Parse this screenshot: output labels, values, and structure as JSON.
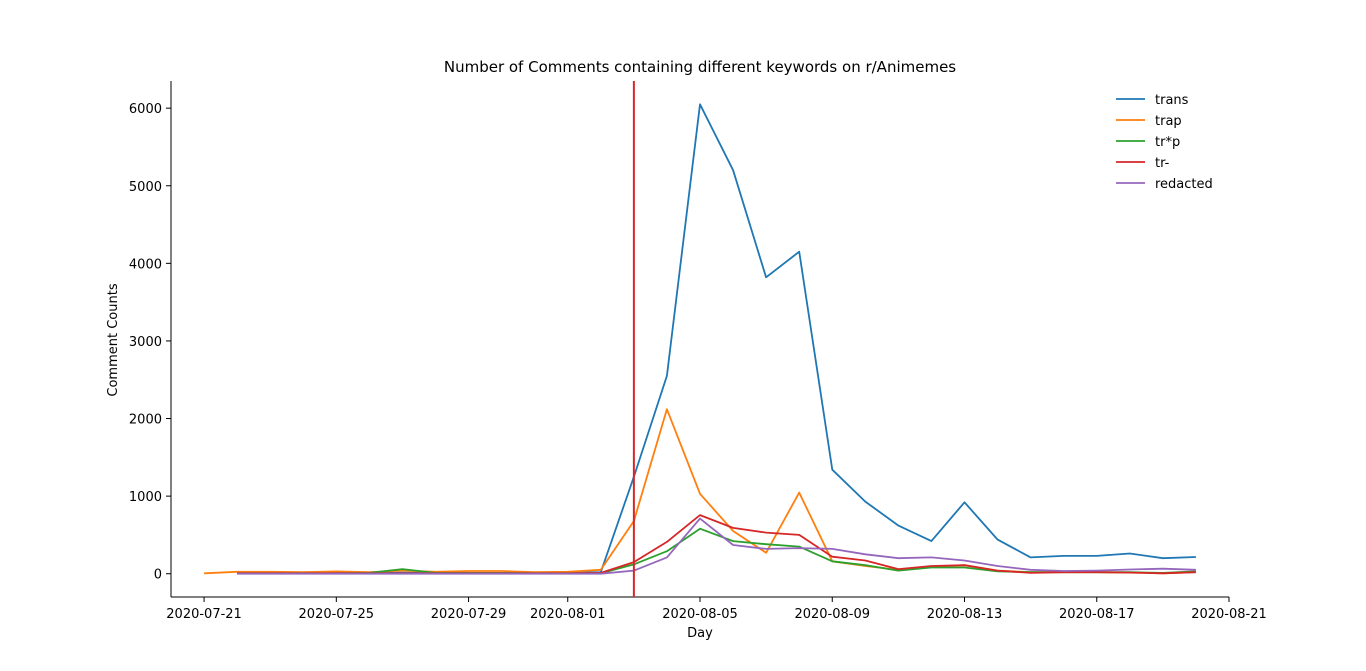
{
  "chart_data": {
    "type": "line",
    "title": "Number of Comments containing different keywords on r/Animemes",
    "xlabel": "Day",
    "ylabel": "Comment Counts",
    "xlim": [
      "2020-07-20",
      "2020-08-21"
    ],
    "ylim": [
      -300,
      6350
    ],
    "xticks": [
      "2020-07-21",
      "2020-07-25",
      "2020-07-29",
      "2020-08-01",
      "2020-08-05",
      "2020-08-09",
      "2020-08-13",
      "2020-08-17",
      "2020-08-21"
    ],
    "yticks": [
      0,
      1000,
      2000,
      3000,
      4000,
      5000,
      6000
    ],
    "grid": false,
    "legend_position": "top-right",
    "vline": {
      "x": "2020-08-03",
      "color": "#d62728"
    },
    "series": [
      {
        "name": "trans",
        "color": "#1f77b4",
        "points": [
          [
            "2020-07-22",
            10
          ],
          [
            "2020-07-23",
            15
          ],
          [
            "2020-07-24",
            10
          ],
          [
            "2020-07-25",
            10
          ],
          [
            "2020-07-26",
            10
          ],
          [
            "2020-07-27",
            15
          ],
          [
            "2020-07-28",
            10
          ],
          [
            "2020-07-29",
            10
          ],
          [
            "2020-07-30",
            10
          ],
          [
            "2020-07-31",
            10
          ],
          [
            "2020-08-01",
            10
          ],
          [
            "2020-08-02",
            20
          ],
          [
            "2020-08-03",
            1250
          ],
          [
            "2020-08-04",
            2550
          ],
          [
            "2020-08-05",
            6050
          ],
          [
            "2020-08-06",
            5200
          ],
          [
            "2020-08-07",
            3820
          ],
          [
            "2020-08-08",
            4150
          ],
          [
            "2020-08-09",
            1340
          ],
          [
            "2020-08-10",
            930
          ],
          [
            "2020-08-11",
            620
          ],
          [
            "2020-08-12",
            420
          ],
          [
            "2020-08-13",
            920
          ],
          [
            "2020-08-14",
            440
          ],
          [
            "2020-08-15",
            210
          ],
          [
            "2020-08-16",
            230
          ],
          [
            "2020-08-17",
            230
          ],
          [
            "2020-08-18",
            260
          ],
          [
            "2020-08-19",
            200
          ],
          [
            "2020-08-20",
            215
          ]
        ]
      },
      {
        "name": "trap",
        "color": "#ff7f0e",
        "points": [
          [
            "2020-07-21",
            5
          ],
          [
            "2020-07-22",
            25
          ],
          [
            "2020-07-23",
            25
          ],
          [
            "2020-07-24",
            20
          ],
          [
            "2020-07-25",
            30
          ],
          [
            "2020-07-26",
            20
          ],
          [
            "2020-07-27",
            40
          ],
          [
            "2020-07-28",
            25
          ],
          [
            "2020-07-29",
            35
          ],
          [
            "2020-07-30",
            35
          ],
          [
            "2020-07-31",
            20
          ],
          [
            "2020-08-01",
            25
          ],
          [
            "2020-08-02",
            50
          ],
          [
            "2020-08-03",
            680
          ],
          [
            "2020-08-04",
            2120
          ],
          [
            "2020-08-05",
            1030
          ],
          [
            "2020-08-06",
            550
          ],
          [
            "2020-08-07",
            270
          ],
          [
            "2020-08-08",
            1045
          ],
          [
            "2020-08-09",
            160
          ],
          [
            "2020-08-10",
            100
          ],
          [
            "2020-08-11",
            50
          ],
          [
            "2020-08-12",
            90
          ],
          [
            "2020-08-13",
            110
          ],
          [
            "2020-08-14",
            40
          ],
          [
            "2020-08-15",
            20
          ],
          [
            "2020-08-16",
            20
          ],
          [
            "2020-08-17",
            20
          ],
          [
            "2020-08-18",
            15
          ],
          [
            "2020-08-19",
            5
          ],
          [
            "2020-08-20",
            20
          ]
        ]
      },
      {
        "name": "tr*p",
        "color": "#2ca02c",
        "points": [
          [
            "2020-07-22",
            5
          ],
          [
            "2020-07-23",
            5
          ],
          [
            "2020-07-24",
            5
          ],
          [
            "2020-07-25",
            5
          ],
          [
            "2020-07-26",
            10
          ],
          [
            "2020-07-27",
            60
          ],
          [
            "2020-07-28",
            10
          ],
          [
            "2020-07-29",
            10
          ],
          [
            "2020-07-30",
            10
          ],
          [
            "2020-07-31",
            5
          ],
          [
            "2020-08-01",
            5
          ],
          [
            "2020-08-02",
            5
          ],
          [
            "2020-08-03",
            120
          ],
          [
            "2020-08-04",
            290
          ],
          [
            "2020-08-05",
            580
          ],
          [
            "2020-08-06",
            420
          ],
          [
            "2020-08-07",
            380
          ],
          [
            "2020-08-08",
            350
          ],
          [
            "2020-08-09",
            160
          ],
          [
            "2020-08-10",
            110
          ],
          [
            "2020-08-11",
            40
          ],
          [
            "2020-08-12",
            80
          ],
          [
            "2020-08-13",
            80
          ],
          [
            "2020-08-14",
            30
          ],
          [
            "2020-08-15",
            20
          ],
          [
            "2020-08-16",
            20
          ],
          [
            "2020-08-17",
            20
          ],
          [
            "2020-08-18",
            20
          ],
          [
            "2020-08-19",
            10
          ],
          [
            "2020-08-20",
            30
          ]
        ]
      },
      {
        "name": "tr-",
        "color": "#d62728",
        "points": [
          [
            "2020-07-22",
            5
          ],
          [
            "2020-07-23",
            5
          ],
          [
            "2020-07-24",
            5
          ],
          [
            "2020-07-25",
            5
          ],
          [
            "2020-07-26",
            5
          ],
          [
            "2020-07-27",
            5
          ],
          [
            "2020-07-28",
            5
          ],
          [
            "2020-07-29",
            5
          ],
          [
            "2020-07-30",
            5
          ],
          [
            "2020-07-31",
            5
          ],
          [
            "2020-08-01",
            5
          ],
          [
            "2020-08-02",
            10
          ],
          [
            "2020-08-03",
            150
          ],
          [
            "2020-08-04",
            410
          ],
          [
            "2020-08-05",
            755
          ],
          [
            "2020-08-06",
            590
          ],
          [
            "2020-08-07",
            530
          ],
          [
            "2020-08-08",
            500
          ],
          [
            "2020-08-09",
            220
          ],
          [
            "2020-08-10",
            170
          ],
          [
            "2020-08-11",
            60
          ],
          [
            "2020-08-12",
            100
          ],
          [
            "2020-08-13",
            110
          ],
          [
            "2020-08-14",
            40
          ],
          [
            "2020-08-15",
            10
          ],
          [
            "2020-08-16",
            20
          ],
          [
            "2020-08-17",
            20
          ],
          [
            "2020-08-18",
            15
          ],
          [
            "2020-08-19",
            5
          ],
          [
            "2020-08-20",
            20
          ]
        ]
      },
      {
        "name": "redacted",
        "color": "#9467bd",
        "points": [
          [
            "2020-07-22",
            0
          ],
          [
            "2020-07-23",
            0
          ],
          [
            "2020-07-24",
            0
          ],
          [
            "2020-07-25",
            0
          ],
          [
            "2020-07-26",
            0
          ],
          [
            "2020-07-27",
            0
          ],
          [
            "2020-07-28",
            0
          ],
          [
            "2020-07-29",
            0
          ],
          [
            "2020-07-30",
            0
          ],
          [
            "2020-07-31",
            0
          ],
          [
            "2020-08-01",
            0
          ],
          [
            "2020-08-02",
            0
          ],
          [
            "2020-08-03",
            40
          ],
          [
            "2020-08-04",
            210
          ],
          [
            "2020-08-05",
            710
          ],
          [
            "2020-08-06",
            370
          ],
          [
            "2020-08-07",
            320
          ],
          [
            "2020-08-08",
            330
          ],
          [
            "2020-08-09",
            320
          ],
          [
            "2020-08-10",
            250
          ],
          [
            "2020-08-11",
            200
          ],
          [
            "2020-08-12",
            210
          ],
          [
            "2020-08-13",
            170
          ],
          [
            "2020-08-14",
            100
          ],
          [
            "2020-08-15",
            50
          ],
          [
            "2020-08-16",
            35
          ],
          [
            "2020-08-17",
            40
          ],
          [
            "2020-08-18",
            55
          ],
          [
            "2020-08-19",
            65
          ],
          [
            "2020-08-20",
            50
          ]
        ]
      }
    ]
  }
}
